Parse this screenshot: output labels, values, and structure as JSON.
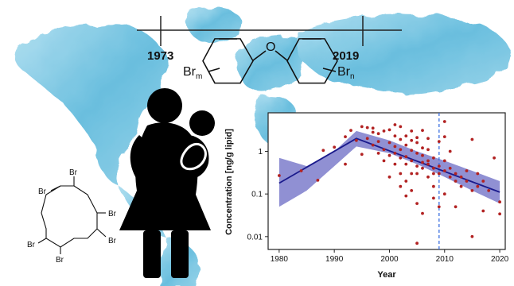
{
  "timeline": {
    "start_year": "1973",
    "end_year": "2019"
  },
  "pbde": {
    "br_left": "Br",
    "br_left_sub": "m",
    "br_right": "Br",
    "br_right_sub": "n",
    "oxygen": "O"
  },
  "hbcd": {
    "br_labels": [
      "Br",
      "Br",
      "Br",
      "Br",
      "Br",
      "Br"
    ]
  },
  "icons": {
    "map": "world-map-watercolor",
    "mother": "mother-holding-baby-icon"
  },
  "colors": {
    "map_blue": "#6fc3df",
    "points": "#b22222",
    "trend_line": "#1a1a8c",
    "confidence_band": "#6b6bc4",
    "reference_line": "#3b6fe0"
  },
  "chart_data": {
    "type": "scatter",
    "xlabel": "Year",
    "ylabel": "Concentration [ng/g lipid]",
    "xlim": [
      1978,
      2021
    ],
    "ylim": [
      0.005,
      8
    ],
    "y_scale": "log",
    "x_ticks": [
      "1980",
      "1990",
      "2000",
      "2010",
      "2020"
    ],
    "y_ticks": [
      "0.01",
      "0.1",
      "1"
    ],
    "reference_year": 2009,
    "trend": {
      "x": [
        1980,
        1994,
        2020
      ],
      "y": [
        0.18,
        2.0,
        0.11
      ]
    },
    "band": {
      "x": [
        1980,
        1985,
        1990,
        1994,
        2000,
        2005,
        2010,
        2015,
        2020
      ],
      "lower": [
        0.05,
        0.12,
        0.45,
        1.3,
        0.9,
        0.5,
        0.25,
        0.12,
        0.06
      ],
      "upper": [
        0.7,
        0.45,
        1.0,
        3.0,
        1.8,
        1.0,
        0.6,
        0.35,
        0.2
      ]
    },
    "points": [
      [
        1980,
        0.27
      ],
      [
        1984,
        0.35
      ],
      [
        1987,
        0.21
      ],
      [
        1988,
        1.05
      ],
      [
        1990,
        1.25
      ],
      [
        1992,
        0.5
      ],
      [
        1992,
        2.2
      ],
      [
        1993,
        3.1
      ],
      [
        1994,
        1.8
      ],
      [
        1995,
        0.85
      ],
      [
        1995,
        3.8
      ],
      [
        1996,
        3.6
      ],
      [
        1996,
        2.0
      ],
      [
        1997,
        1.4
      ],
      [
        1997,
        2.8
      ],
      [
        1997,
        3.5
      ],
      [
        1998,
        0.9
      ],
      [
        1998,
        1.7
      ],
      [
        1998,
        2.6
      ],
      [
        1999,
        1.1
      ],
      [
        1999,
        3.0
      ],
      [
        1999,
        0.6
      ],
      [
        2000,
        1.6
      ],
      [
        2000,
        3.2
      ],
      [
        2000,
        0.8
      ],
      [
        2000,
        0.25
      ],
      [
        2001,
        0.9
      ],
      [
        2001,
        2.3
      ],
      [
        2001,
        0.5
      ],
      [
        2001,
        1.3
      ],
      [
        2001,
        4.2
      ],
      [
        2002,
        0.3
      ],
      [
        2002,
        0.7
      ],
      [
        2002,
        1.9
      ],
      [
        2002,
        0.15
      ],
      [
        2002,
        1.1
      ],
      [
        2002,
        3.8
      ],
      [
        2003,
        0.5
      ],
      [
        2003,
        1.4
      ],
      [
        2003,
        0.2
      ],
      [
        2003,
        0.09
      ],
      [
        2003,
        2.3
      ],
      [
        2003,
        0.75
      ],
      [
        2004,
        1.8
      ],
      [
        2004,
        0.6
      ],
      [
        2004,
        0.3
      ],
      [
        2004,
        1.05
      ],
      [
        2004,
        3.0
      ],
      [
        2004,
        0.12
      ],
      [
        2005,
        0.45
      ],
      [
        2005,
        0.9
      ],
      [
        2005,
        1.6
      ],
      [
        2005,
        0.3
      ],
      [
        2005,
        0.007
      ],
      [
        2005,
        2.1
      ],
      [
        2005,
        0.06
      ],
      [
        2006,
        0.55
      ],
      [
        2006,
        0.8
      ],
      [
        2006,
        1.2
      ],
      [
        2006,
        0.035
      ],
      [
        2006,
        3.1
      ],
      [
        2006,
        0.4
      ],
      [
        2007,
        0.25
      ],
      [
        2007,
        0.6
      ],
      [
        2007,
        0.5
      ],
      [
        2007,
        1.1
      ],
      [
        2007,
        2.0
      ],
      [
        2008,
        0.4
      ],
      [
        2008,
        0.7
      ],
      [
        2008,
        0.3
      ],
      [
        2008,
        0.15
      ],
      [
        2008,
        0.08
      ],
      [
        2009,
        0.45
      ],
      [
        2009,
        1.7
      ],
      [
        2009,
        0.3
      ],
      [
        2009,
        0.05
      ],
      [
        2010,
        0.35
      ],
      [
        2010,
        0.6
      ],
      [
        2010,
        5.0
      ],
      [
        2010,
        0.1
      ],
      [
        2010,
        2.2
      ],
      [
        2011,
        0.4
      ],
      [
        2011,
        0.25
      ],
      [
        2011,
        1.0
      ],
      [
        2012,
        0.3
      ],
      [
        2012,
        0.2
      ],
      [
        2012,
        0.05
      ],
      [
        2013,
        0.25
      ],
      [
        2013,
        0.15
      ],
      [
        2014,
        0.35
      ],
      [
        2014,
        0.2
      ],
      [
        2015,
        0.01
      ],
      [
        2015,
        1.9
      ],
      [
        2015,
        0.12
      ],
      [
        2016,
        0.15
      ],
      [
        2016,
        0.3
      ],
      [
        2017,
        0.04
      ],
      [
        2017,
        0.2
      ],
      [
        2018,
        0.12
      ],
      [
        2019,
        0.7
      ],
      [
        2020,
        0.065
      ],
      [
        2020,
        0.034
      ]
    ]
  }
}
